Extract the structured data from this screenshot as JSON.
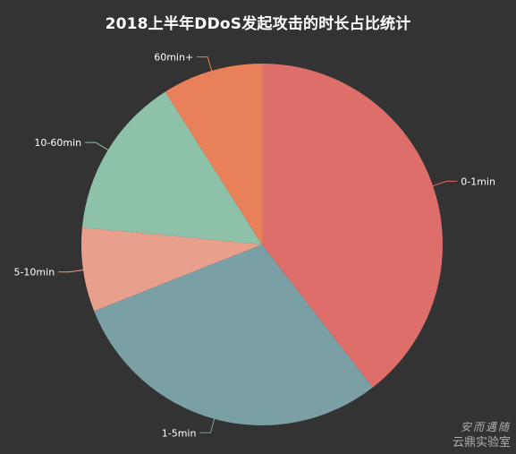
{
  "chart_data": {
    "type": "pie",
    "title": "2018上半年DDoS发起攻击的时长占比统计",
    "categories": [
      "0-1min",
      "1-5min",
      "5-10min",
      "10-60min",
      "60min+"
    ],
    "values": [
      39.5,
      29.5,
      7.5,
      14.5,
      9.0
    ],
    "colors": [
      "#de6e6a",
      "#7a9fa4",
      "#e8a08c",
      "#8ec2a8",
      "#e8805a"
    ],
    "legend": "none",
    "label_placement": "outside-with-leader-lines",
    "start_angle": "12 o'clock, clockwise"
  },
  "watermark": {
    "line1": "安而遇随",
    "line2": "云鼎实验室"
  }
}
